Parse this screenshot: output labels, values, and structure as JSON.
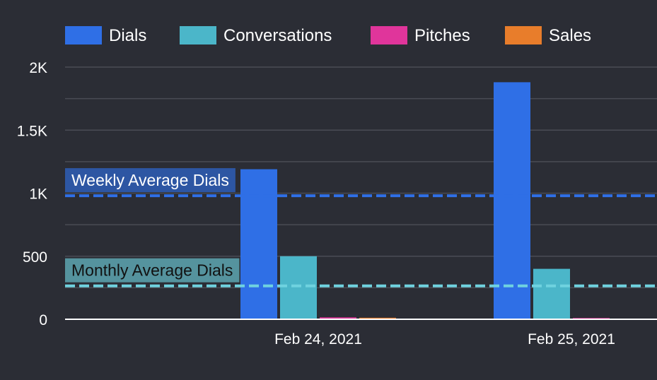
{
  "chart_data": {
    "type": "bar",
    "categories": [
      "Feb 24, 2021",
      "Feb 25, 2021"
    ],
    "series": [
      {
        "name": "Dials",
        "color": "#2f6fe6",
        "values": [
          1190,
          1880
        ]
      },
      {
        "name": "Conversations",
        "color": "#4bb6c9",
        "values": [
          500,
          400
        ]
      },
      {
        "name": "Pitches",
        "color": "#e0359b",
        "values": [
          15,
          10
        ]
      },
      {
        "name": "Sales",
        "color": "#e87d2b",
        "values": [
          12,
          0
        ]
      }
    ],
    "ylim": [
      0,
      2000
    ],
    "yticks": [
      {
        "value": 0,
        "label": "0"
      },
      {
        "value": 500,
        "label": "500"
      },
      {
        "value": 1000,
        "label": "1K"
      },
      {
        "value": 1500,
        "label": "1.5K"
      },
      {
        "value": 2000,
        "label": "2K"
      }
    ],
    "reference_lines": [
      {
        "label": "Weekly Average Dials",
        "value": 980,
        "color": "#2f6fe6"
      },
      {
        "label": "Monthly Average Dials",
        "value": 265,
        "color": "#6fd2df"
      }
    ],
    "grid": true,
    "legend_position": "top"
  },
  "colors": {
    "background": "#2b2d35",
    "gridline": "#4a4c55",
    "axis": "#ffffff",
    "text": "#ffffff"
  }
}
